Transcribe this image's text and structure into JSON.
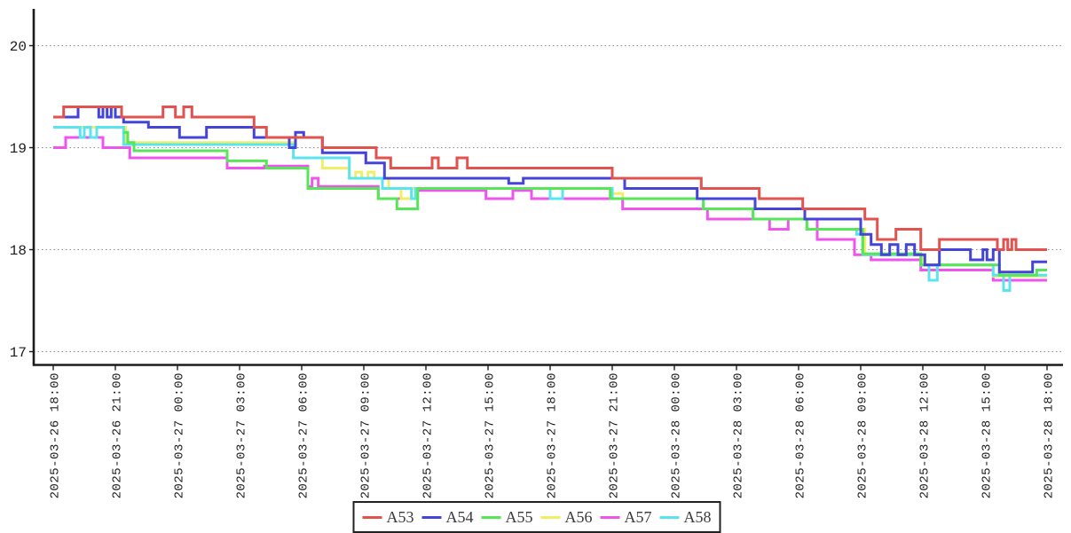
{
  "chart_data": {
    "type": "line",
    "step": true,
    "title": "",
    "x_axis": {
      "label": "",
      "start": "2025-03-26 18:00",
      "end": "2025-03-28 18:00",
      "tick_interval_hours": 3,
      "range_hours": [
        0,
        48
      ],
      "tick_labels": [
        "2025-03-26 18:00",
        "2025-03-26 21:00",
        "2025-03-27 00:00",
        "2025-03-27 03:00",
        "2025-03-27 06:00",
        "2025-03-27 09:00",
        "2025-03-27 12:00",
        "2025-03-27 15:00",
        "2025-03-27 18:00",
        "2025-03-27 21:00",
        "2025-03-28 00:00",
        "2025-03-28 03:00",
        "2025-03-28 06:00",
        "2025-03-28 09:00",
        "2025-03-28 12:00",
        "2025-03-28 15:00",
        "2025-03-28 18:00"
      ]
    },
    "y_axis": {
      "label": "",
      "ticks": [
        20,
        19,
        18,
        17
      ],
      "range": [
        16.87,
        20.38
      ],
      "grid": "dotted"
    },
    "legend": {
      "position": "bottom-center",
      "entries": [
        "A53",
        "A54",
        "A55",
        "A56",
        "A57",
        "A58"
      ]
    },
    "draw_order": [
      "A57",
      "A56",
      "A58",
      "A55",
      "A54",
      "A53"
    ],
    "series": [
      {
        "name": "A53",
        "color": "#e2524e",
        "steps": [
          [
            0,
            19.3
          ],
          [
            0.5,
            19.4
          ],
          [
            3.3,
            19.3
          ],
          [
            5.3,
            19.4
          ],
          [
            5.9,
            19.3
          ],
          [
            6.3,
            19.4
          ],
          [
            6.7,
            19.3
          ],
          [
            9.7,
            19.2
          ],
          [
            10.3,
            19.1
          ],
          [
            13,
            19.0
          ],
          [
            15.6,
            18.9
          ],
          [
            16.3,
            18.8
          ],
          [
            18.3,
            18.9
          ],
          [
            18.6,
            18.8
          ],
          [
            19.5,
            18.9
          ],
          [
            20,
            18.8
          ],
          [
            27,
            18.7
          ],
          [
            31.3,
            18.6
          ],
          [
            34.1,
            18.5
          ],
          [
            36.2,
            18.4
          ],
          [
            39.2,
            18.3
          ],
          [
            39.8,
            18.1
          ],
          [
            40.7,
            18.2
          ],
          [
            41.9,
            18.0
          ],
          [
            42.8,
            18.1
          ],
          [
            45.6,
            18.0
          ],
          [
            45.9,
            18.1
          ],
          [
            46.1,
            18.0
          ],
          [
            46.3,
            18.1
          ],
          [
            46.5,
            18.0
          ]
        ]
      },
      {
        "name": "A54",
        "color": "#4444d8",
        "steps": [
          [
            0,
            19.3
          ],
          [
            1.2,
            19.4
          ],
          [
            2.2,
            19.3
          ],
          [
            2.4,
            19.4
          ],
          [
            2.6,
            19.3
          ],
          [
            2.8,
            19.4
          ],
          [
            3,
            19.3
          ],
          [
            3.4,
            19.25
          ],
          [
            4.6,
            19.2
          ],
          [
            6.1,
            19.1
          ],
          [
            7.4,
            19.2
          ],
          [
            9.7,
            19.1
          ],
          [
            11.4,
            19.0
          ],
          [
            11.7,
            19.15
          ],
          [
            12.1,
            19.1
          ],
          [
            13,
            18.95
          ],
          [
            15.1,
            18.85
          ],
          [
            16,
            18.7
          ],
          [
            22,
            18.65
          ],
          [
            22.7,
            18.7
          ],
          [
            27.6,
            18.6
          ],
          [
            31.1,
            18.5
          ],
          [
            33.9,
            18.4
          ],
          [
            36.3,
            18.3
          ],
          [
            39,
            18.15
          ],
          [
            39.5,
            18.05
          ],
          [
            40,
            17.95
          ],
          [
            40.4,
            18.05
          ],
          [
            40.8,
            17.95
          ],
          [
            41.2,
            18.05
          ],
          [
            41.6,
            17.95
          ],
          [
            42.1,
            17.85
          ],
          [
            42.8,
            18.0
          ],
          [
            44.3,
            17.9
          ],
          [
            44.9,
            18.0
          ],
          [
            45.1,
            17.9
          ],
          [
            45.4,
            18.0
          ],
          [
            45.7,
            17.78
          ],
          [
            47.3,
            17.88
          ]
        ]
      },
      {
        "name": "A55",
        "color": "#57e657",
        "steps": [
          [
            3.4,
            19.15
          ],
          [
            3.6,
            19.05
          ],
          [
            3.9,
            18.97
          ],
          [
            8.4,
            18.87
          ],
          [
            10.3,
            18.8
          ],
          [
            12.3,
            18.6
          ],
          [
            15.7,
            18.5
          ],
          [
            16.6,
            18.4
          ],
          [
            17.6,
            18.6
          ],
          [
            26.9,
            18.5
          ],
          [
            31.4,
            18.4
          ],
          [
            33.8,
            18.3
          ],
          [
            36.4,
            18.2
          ],
          [
            39.1,
            17.96
          ],
          [
            41.9,
            17.85
          ],
          [
            45.7,
            17.75
          ],
          [
            47.5,
            17.8
          ]
        ]
      },
      {
        "name": "A56",
        "color": "#f2ee64",
        "steps": [
          [
            0,
            19.2
          ],
          [
            3.5,
            19.05
          ],
          [
            11.6,
            18.9
          ],
          [
            13,
            18.8
          ],
          [
            14.3,
            18.7
          ],
          [
            14.6,
            18.76
          ],
          [
            14.9,
            18.7
          ],
          [
            15.2,
            18.76
          ],
          [
            15.5,
            18.7
          ],
          [
            16.2,
            18.6
          ],
          [
            16.8,
            18.5
          ],
          [
            17.3,
            18.6
          ],
          [
            27,
            18.55
          ],
          [
            27.5,
            18.5
          ],
          [
            31.4,
            18.4
          ],
          [
            33.8,
            18.3
          ],
          [
            36.4,
            18.2
          ],
          [
            39.2,
            17.95
          ],
          [
            42,
            17.85
          ],
          [
            45.4,
            17.74
          ]
        ]
      },
      {
        "name": "A57",
        "color": "#ee55ee",
        "steps": [
          [
            0,
            19.0
          ],
          [
            0.6,
            19.1
          ],
          [
            2.4,
            19.0
          ],
          [
            3.7,
            18.9
          ],
          [
            8.4,
            18.8
          ],
          [
            10.2,
            18.82
          ],
          [
            12.3,
            18.62
          ],
          [
            12.5,
            18.7
          ],
          [
            12.8,
            18.62
          ],
          [
            15.7,
            18.5
          ],
          [
            17.6,
            18.58
          ],
          [
            20.9,
            18.5
          ],
          [
            22.2,
            18.58
          ],
          [
            23.1,
            18.5
          ],
          [
            27.5,
            18.4
          ],
          [
            31.6,
            18.3
          ],
          [
            34.6,
            18.2
          ],
          [
            35.5,
            18.3
          ],
          [
            36.9,
            18.1
          ],
          [
            38.7,
            17.95
          ],
          [
            39.5,
            17.9
          ],
          [
            41.9,
            17.8
          ],
          [
            45.4,
            17.7
          ]
        ]
      },
      {
        "name": "A58",
        "color": "#59e4ef",
        "steps": [
          [
            0,
            19.2
          ],
          [
            1.3,
            19.1
          ],
          [
            1.5,
            19.2
          ],
          [
            1.8,
            19.1
          ],
          [
            2.1,
            19.2
          ],
          [
            3.4,
            19.03
          ],
          [
            11.6,
            18.9
          ],
          [
            14.3,
            18.7
          ],
          [
            15.9,
            18.6
          ],
          [
            17.3,
            18.5
          ],
          [
            17.5,
            18.6
          ],
          [
            24,
            18.5
          ],
          [
            24.6,
            18.6
          ],
          [
            27,
            18.5
          ],
          [
            31.4,
            18.4
          ],
          [
            33.8,
            18.3
          ],
          [
            36.4,
            18.2
          ],
          [
            38.8,
            18.15
          ],
          [
            39.1,
            17.95
          ],
          [
            41.9,
            17.85
          ],
          [
            42.3,
            17.7
          ],
          [
            42.7,
            17.85
          ],
          [
            45.4,
            17.75
          ],
          [
            45.9,
            17.6
          ],
          [
            46.2,
            17.75
          ]
        ]
      }
    ]
  },
  "colors": {
    "background": "#ffffff",
    "axis": "#1c1c1c",
    "grid": "#8a8a8a",
    "tick_text": "#1c1c1c"
  }
}
